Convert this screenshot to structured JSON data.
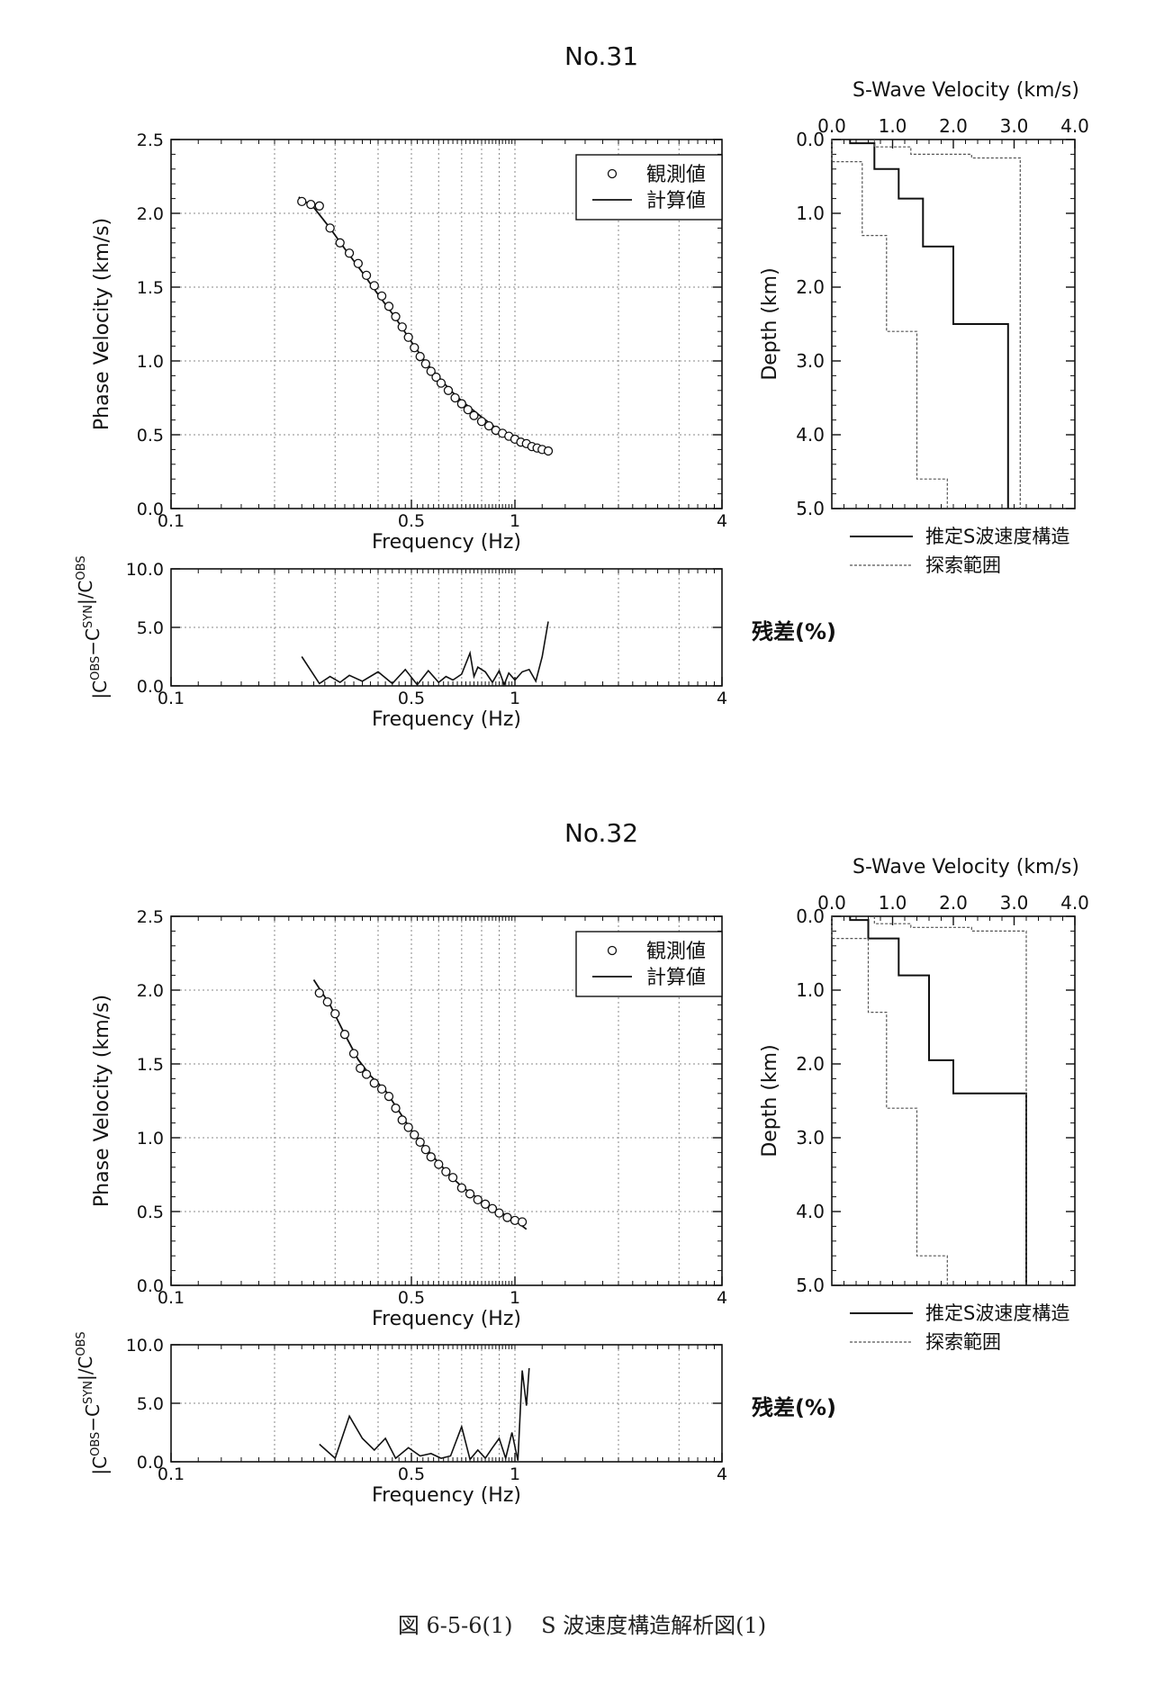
{
  "caption": "図 6-5-6(1)　 S 波速度構造解析図(1)",
  "panels": [
    {
      "title": "No.31",
      "dispersion": {
        "ylabel": "Phase Velocity (km/s)",
        "xlabel": "Frequency (Hz)",
        "ytick_labels": [
          "0.0",
          "0.5",
          "1.0",
          "1.5",
          "2.0",
          "2.5"
        ],
        "xtick_labels": [
          "0.1",
          "0.5",
          "1",
          "4"
        ],
        "legend_observed": "観測値",
        "legend_calculated": "計算値"
      },
      "residual": {
        "ylabel": "|C^OBS−C^SYN|/C^OBS",
        "xlabel": "Frequency (Hz)",
        "side_label": "残差(%)",
        "ytick_labels": [
          "0.0",
          "5.0",
          "10.0"
        ],
        "xtick_labels": [
          "0.1",
          "0.5",
          "1",
          "4"
        ]
      },
      "profile": {
        "title": "S-Wave Velocity (km/s)",
        "ylabel": "Depth (km)",
        "xtick_labels": [
          "0.0",
          "1.0",
          "2.0",
          "3.0",
          "4.0"
        ],
        "ytick_labels": [
          "0.0",
          "1.0",
          "2.0",
          "3.0",
          "4.0",
          "5.0"
        ],
        "legend_estimated": "推定S波速度構造",
        "legend_range": "探索範囲"
      }
    },
    {
      "title": "No.32",
      "dispersion": {
        "ylabel": "Phase Velocity (km/s)",
        "xlabel": "Frequency (Hz)",
        "ytick_labels": [
          "0.0",
          "0.5",
          "1.0",
          "1.5",
          "2.0",
          "2.5"
        ],
        "xtick_labels": [
          "0.1",
          "0.5",
          "1",
          "4"
        ],
        "legend_observed": "観測値",
        "legend_calculated": "計算値"
      },
      "residual": {
        "ylabel": "|C^OBS−C^SYN|/C^OBS",
        "xlabel": "Frequency (Hz)",
        "side_label": "残差(%)",
        "ytick_labels": [
          "0.0",
          "5.0",
          "10.0"
        ],
        "xtick_labels": [
          "0.1",
          "0.5",
          "1",
          "4"
        ]
      },
      "profile": {
        "title": "S-Wave Velocity (km/s)",
        "ylabel": "Depth (km)",
        "xtick_labels": [
          "0.0",
          "1.0",
          "2.0",
          "3.0",
          "4.0"
        ],
        "ytick_labels": [
          "0.0",
          "1.0",
          "2.0",
          "3.0",
          "4.0",
          "5.0"
        ],
        "legend_estimated": "推定S波速度構造",
        "legend_range": "探索範囲"
      }
    }
  ],
  "chart_data": [
    {
      "type": "scatter",
      "panel": "No.31",
      "role": "dispersion",
      "x_scale": "log",
      "xlim": [
        0.1,
        4
      ],
      "ylim": [
        0,
        2.5
      ],
      "grid": true,
      "legend_position": "top-right",
      "series": [
        {
          "name": "観測値",
          "marker": "circle",
          "x": [
            0.24,
            0.255,
            0.27,
            0.29,
            0.31,
            0.33,
            0.35,
            0.37,
            0.39,
            0.41,
            0.43,
            0.45,
            0.47,
            0.49,
            0.51,
            0.53,
            0.55,
            0.57,
            0.59,
            0.61,
            0.64,
            0.67,
            0.7,
            0.73,
            0.76,
            0.8,
            0.84,
            0.88,
            0.92,
            0.96,
            1.0,
            1.04,
            1.08,
            1.12,
            1.16,
            1.2,
            1.25
          ],
          "y": [
            2.08,
            2.06,
            2.05,
            1.9,
            1.8,
            1.73,
            1.66,
            1.58,
            1.51,
            1.44,
            1.37,
            1.3,
            1.23,
            1.16,
            1.09,
            1.03,
            0.98,
            0.93,
            0.89,
            0.85,
            0.8,
            0.75,
            0.71,
            0.67,
            0.63,
            0.59,
            0.56,
            0.53,
            0.51,
            0.49,
            0.47,
            0.45,
            0.44,
            0.42,
            0.41,
            0.4,
            0.39
          ]
        },
        {
          "name": "計算値",
          "x": [
            0.235,
            0.26,
            0.29,
            0.32,
            0.36,
            0.4,
            0.45,
            0.5,
            0.55,
            0.6,
            0.65,
            0.7,
            0.8,
            0.9,
            1.0,
            1.1,
            1.2,
            1.25
          ],
          "y": [
            2.11,
            2.04,
            1.9,
            1.76,
            1.6,
            1.45,
            1.29,
            1.13,
            0.99,
            0.89,
            0.8,
            0.73,
            0.62,
            0.53,
            0.47,
            0.43,
            0.4,
            0.39
          ]
        }
      ]
    },
    {
      "type": "line",
      "panel": "No.31",
      "role": "residual",
      "x_scale": "log",
      "xlim": [
        0.1,
        4
      ],
      "ylim": [
        0,
        10
      ],
      "grid": true,
      "series": [
        {
          "x": [
            0.24,
            0.27,
            0.29,
            0.31,
            0.33,
            0.36,
            0.4,
            0.44,
            0.48,
            0.52,
            0.56,
            0.6,
            0.63,
            0.66,
            0.7,
            0.74,
            0.76,
            0.78,
            0.82,
            0.86,
            0.9,
            0.93,
            0.96,
            1.0,
            1.05,
            1.1,
            1.15,
            1.2,
            1.25
          ],
          "y": [
            2.5,
            0.2,
            0.8,
            0.3,
            0.9,
            0.4,
            1.2,
            0.2,
            1.4,
            0.1,
            1.3,
            0.3,
            0.8,
            0.5,
            1.0,
            2.8,
            0.8,
            1.6,
            1.2,
            0.3,
            1.3,
            0.1,
            1.1,
            0.5,
            1.2,
            1.4,
            0.4,
            2.5,
            5.5
          ]
        }
      ]
    },
    {
      "type": "line",
      "panel": "No.31",
      "role": "velocity-profile",
      "xlabel": "S-Wave Velocity (km/s)",
      "ylabel": "Depth (km)",
      "xlim": [
        0,
        4
      ],
      "ylim": [
        5,
        0
      ],
      "series": [
        {
          "name": "推定S波速度構造",
          "velocity": [
            0.3,
            0.3,
            0.7,
            0.7,
            1.1,
            1.1,
            1.5,
            1.5,
            2.0,
            2.0,
            2.9,
            2.9
          ],
          "depth": [
            0.0,
            0.05,
            0.05,
            0.4,
            0.4,
            0.8,
            0.8,
            1.45,
            1.45,
            2.5,
            2.5,
            5.0
          ]
        },
        {
          "name": "探索範囲 (min)",
          "velocity": [
            0.0,
            0.0,
            0.5,
            0.5,
            0.9,
            0.9,
            1.4,
            1.4,
            1.9,
            1.9
          ],
          "depth": [
            0.0,
            0.3,
            0.3,
            1.3,
            1.3,
            2.6,
            2.6,
            4.6,
            4.6,
            5.0
          ]
        },
        {
          "name": "探索範囲 (max)",
          "velocity": [
            0.7,
            0.7,
            1.3,
            1.3,
            2.3,
            2.3,
            3.1,
            3.1
          ],
          "depth": [
            0.0,
            0.1,
            0.1,
            0.2,
            0.2,
            0.25,
            0.25,
            5.0
          ]
        }
      ]
    },
    {
      "type": "scatter",
      "panel": "No.32",
      "role": "dispersion",
      "x_scale": "log",
      "xlim": [
        0.1,
        4
      ],
      "ylim": [
        0,
        2.5
      ],
      "grid": true,
      "legend_position": "top-right",
      "series": [
        {
          "name": "観測値",
          "marker": "circle",
          "x": [
            0.27,
            0.285,
            0.3,
            0.32,
            0.34,
            0.355,
            0.37,
            0.39,
            0.41,
            0.43,
            0.45,
            0.47,
            0.49,
            0.51,
            0.53,
            0.55,
            0.57,
            0.6,
            0.63,
            0.66,
            0.7,
            0.74,
            0.78,
            0.82,
            0.86,
            0.9,
            0.95,
            1.0,
            1.05
          ],
          "y": [
            1.98,
            1.92,
            1.84,
            1.7,
            1.57,
            1.47,
            1.43,
            1.37,
            1.33,
            1.28,
            1.2,
            1.12,
            1.07,
            1.02,
            0.97,
            0.92,
            0.87,
            0.82,
            0.77,
            0.73,
            0.66,
            0.62,
            0.58,
            0.55,
            0.52,
            0.49,
            0.46,
            0.44,
            0.43
          ]
        },
        {
          "name": "計算値",
          "x": [
            0.26,
            0.29,
            0.32,
            0.35,
            0.38,
            0.42,
            0.46,
            0.5,
            0.55,
            0.6,
            0.65,
            0.7,
            0.8,
            0.9,
            1.0,
            1.08
          ],
          "y": [
            2.07,
            1.9,
            1.7,
            1.53,
            1.42,
            1.32,
            1.18,
            1.05,
            0.93,
            0.83,
            0.74,
            0.67,
            0.57,
            0.5,
            0.44,
            0.38
          ]
        }
      ]
    },
    {
      "type": "line",
      "panel": "No.32",
      "role": "residual",
      "x_scale": "log",
      "xlim": [
        0.1,
        4
      ],
      "ylim": [
        0,
        10
      ],
      "grid": true,
      "series": [
        {
          "x": [
            0.27,
            0.3,
            0.33,
            0.36,
            0.39,
            0.42,
            0.45,
            0.49,
            0.53,
            0.57,
            0.61,
            0.65,
            0.7,
            0.74,
            0.78,
            0.82,
            0.86,
            0.9,
            0.94,
            0.98,
            1.02,
            1.05,
            1.08,
            1.1
          ],
          "y": [
            1.5,
            0.3,
            3.9,
            2.0,
            1.0,
            2.0,
            0.3,
            1.2,
            0.5,
            0.7,
            0.3,
            0.5,
            3.0,
            0.2,
            1.0,
            0.3,
            1.2,
            2.0,
            0.3,
            2.5,
            0.1,
            7.8,
            4.8,
            8.0
          ]
        }
      ]
    },
    {
      "type": "line",
      "panel": "No.32",
      "role": "velocity-profile",
      "xlabel": "S-Wave Velocity (km/s)",
      "ylabel": "Depth (km)",
      "xlim": [
        0,
        4
      ],
      "ylim": [
        5,
        0
      ],
      "series": [
        {
          "name": "推定S波速度構造",
          "velocity": [
            0.3,
            0.3,
            0.6,
            0.6,
            1.1,
            1.1,
            1.6,
            1.6,
            2.0,
            2.0,
            3.2,
            3.2
          ],
          "depth": [
            0.0,
            0.05,
            0.05,
            0.3,
            0.3,
            0.8,
            0.8,
            1.95,
            1.95,
            2.4,
            2.4,
            5.0
          ]
        },
        {
          "name": "探索範囲 (min)",
          "velocity": [
            0.0,
            0.0,
            0.6,
            0.6,
            0.9,
            0.9,
            1.4,
            1.4,
            1.9,
            1.9
          ],
          "depth": [
            0.0,
            0.3,
            0.3,
            1.3,
            1.3,
            2.6,
            2.6,
            4.6,
            4.6,
            5.0
          ]
        },
        {
          "name": "探索範囲 (max)",
          "velocity": [
            0.7,
            0.7,
            1.3,
            1.3,
            2.3,
            2.3,
            3.2,
            3.2
          ],
          "depth": [
            0.0,
            0.1,
            0.1,
            0.15,
            0.15,
            0.2,
            0.2,
            5.0
          ]
        }
      ]
    }
  ]
}
